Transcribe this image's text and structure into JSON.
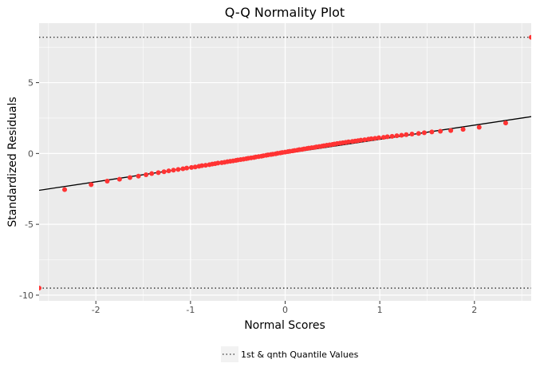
{
  "chart_data": {
    "type": "scatter",
    "title": "Q-Q Normality Plot",
    "xlabel": "Normal Scores",
    "ylabel": "Standardized Residuals",
    "xlim": [
      -2.6,
      2.6
    ],
    "ylim": [
      -10.4,
      9.2
    ],
    "x_ticks": [
      -2,
      -1,
      0,
      1,
      2
    ],
    "y_ticks": [
      -10,
      -5,
      0,
      5
    ],
    "x_tick_labels": [
      "-2",
      "-1",
      "0",
      "1",
      "2"
    ],
    "y_tick_labels": [
      "-10",
      "-5",
      "0",
      "5"
    ],
    "grid": true,
    "legend_position": "bottom",
    "legend": [
      {
        "label": "1st & qnth Quantile Values",
        "style": "dotted"
      }
    ],
    "reference_line": {
      "intercept": 0.0,
      "slope": 1.0
    },
    "quantile_lines": [
      8.2,
      -9.5
    ],
    "point_color": "#ff3333",
    "line_color": "#000000",
    "series": [
      {
        "x": [
          -2.6,
          -2.33,
          -2.05,
          -1.88,
          -1.75,
          -1.64,
          -1.55,
          -1.47,
          -1.41,
          -1.34,
          -1.28,
          -1.23,
          -1.18,
          -1.13,
          -1.08,
          -1.04,
          -0.99,
          -0.95,
          -0.91,
          -0.88,
          -0.84,
          -0.8,
          -0.77,
          -0.74,
          -0.71,
          -0.67,
          -0.64,
          -0.61,
          -0.58,
          -0.55,
          -0.52,
          -0.5,
          -0.47,
          -0.44,
          -0.41,
          -0.39,
          -0.36,
          -0.33,
          -0.31,
          -0.28,
          -0.25,
          -0.23,
          -0.2,
          -0.18,
          -0.15,
          -0.13,
          -0.1,
          -0.08,
          -0.05,
          -0.03,
          0.0,
          0.03,
          0.05,
          0.08,
          0.1,
          0.13,
          0.15,
          0.18,
          0.2,
          0.23,
          0.25,
          0.28,
          0.31,
          0.33,
          0.36,
          0.39,
          0.41,
          0.44,
          0.47,
          0.5,
          0.52,
          0.55,
          0.58,
          0.61,
          0.64,
          0.67,
          0.71,
          0.74,
          0.77,
          0.8,
          0.84,
          0.88,
          0.91,
          0.95,
          0.99,
          1.04,
          1.08,
          1.13,
          1.18,
          1.23,
          1.28,
          1.34,
          1.41,
          1.47,
          1.55,
          1.64,
          1.75,
          1.88,
          2.05,
          2.33,
          2.6
        ],
        "y": [
          -9.5,
          -2.55,
          -2.2,
          -1.95,
          -1.82,
          -1.7,
          -1.6,
          -1.5,
          -1.42,
          -1.35,
          -1.29,
          -1.23,
          -1.18,
          -1.13,
          -1.08,
          -1.03,
          -0.99,
          -0.95,
          -0.9,
          -0.86,
          -0.83,
          -0.79,
          -0.75,
          -0.72,
          -0.68,
          -0.65,
          -0.62,
          -0.58,
          -0.55,
          -0.52,
          -0.49,
          -0.46,
          -0.43,
          -0.4,
          -0.37,
          -0.34,
          -0.31,
          -0.28,
          -0.25,
          -0.22,
          -0.19,
          -0.16,
          -0.13,
          -0.1,
          -0.07,
          -0.05,
          -0.02,
          0.01,
          0.04,
          0.07,
          0.1,
          0.13,
          0.15,
          0.18,
          0.21,
          0.24,
          0.27,
          0.29,
          0.32,
          0.35,
          0.38,
          0.41,
          0.43,
          0.46,
          0.49,
          0.52,
          0.55,
          0.58,
          0.61,
          0.64,
          0.67,
          0.7,
          0.73,
          0.76,
          0.79,
          0.82,
          0.85,
          0.88,
          0.91,
          0.94,
          0.97,
          1.01,
          1.04,
          1.07,
          1.11,
          1.14,
          1.18,
          1.21,
          1.25,
          1.29,
          1.33,
          1.37,
          1.41,
          1.46,
          1.52,
          1.57,
          1.62,
          1.7,
          1.85,
          2.15,
          8.2
        ]
      }
    ]
  }
}
